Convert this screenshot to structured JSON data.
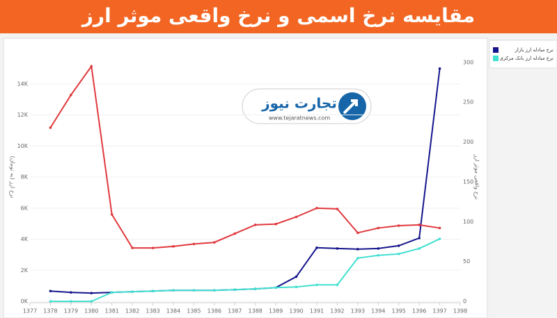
{
  "chart_data": {
    "type": "line",
    "title": "مقایسه نرخ اسمی و نرخ واقعی موثر ارز",
    "y_label": "نرخ ارز (به تومان)",
    "y2_label": "نرخ واقعی موثر ارز",
    "x": [
      1378,
      1379,
      1380,
      1381,
      1382,
      1383,
      1384,
      1385,
      1386,
      1387,
      1388,
      1389,
      1390,
      1391,
      1392,
      1393,
      1394,
      1395,
      1396,
      1397
    ],
    "series": [
      {
        "name": "نرخ مبادله ارز بازار",
        "color": "#14148c",
        "axis": "y",
        "values": [
          660,
          575,
          530,
          575,
          620,
          660,
          710,
          710,
          710,
          750,
          800,
          880,
          1590,
          3450,
          3400,
          3360,
          3400,
          3580,
          4070,
          14980
        ]
      },
      {
        "name": "نرخ مبادله ارز بانک مرکزی",
        "color": "#40e0d0",
        "axis": "y",
        "values": [
          0,
          0,
          0,
          575,
          620,
          660,
          710,
          710,
          710,
          750,
          800,
          880,
          930,
          1060,
          1060,
          2780,
          2960,
          3050,
          3400,
          4020
        ]
      },
      {
        "color": "#e0383c",
        "axis": "y2",
        "values": [
          218,
          259,
          295,
          109,
          67,
          67,
          69,
          72,
          74,
          85,
          96,
          97,
          106,
          117,
          116,
          86,
          92,
          95,
          96,
          92
        ]
      }
    ],
    "xlim": [
      1377,
      1398
    ],
    "xticks": [
      1377,
      1378,
      1379,
      1380,
      1381,
      1382,
      1383,
      1384,
      1385,
      1386,
      1387,
      1388,
      1389,
      1390,
      1391,
      1392,
      1393,
      1394,
      1395,
      1396,
      1397,
      1398
    ],
    "ylim": [
      0,
      16000
    ],
    "yticks": [
      {
        "value": 0,
        "label": "0K"
      },
      {
        "value": 2000,
        "label": "2K"
      },
      {
        "value": 4000,
        "label": "4K"
      },
      {
        "value": 6000,
        "label": "6K"
      },
      {
        "value": 8000,
        "label": "8K"
      },
      {
        "value": 10000,
        "label": "10K"
      },
      {
        "value": 12000,
        "label": "12K"
      },
      {
        "value": 14000,
        "label": "14K"
      }
    ],
    "y2lim": [
      0,
      312
    ],
    "y2ticks": [
      0,
      50,
      100,
      150,
      200,
      250,
      300
    ],
    "grid": true
  },
  "watermark": {
    "brand": "تجارت نیوز",
    "url": "www.tejaratnews.com"
  }
}
